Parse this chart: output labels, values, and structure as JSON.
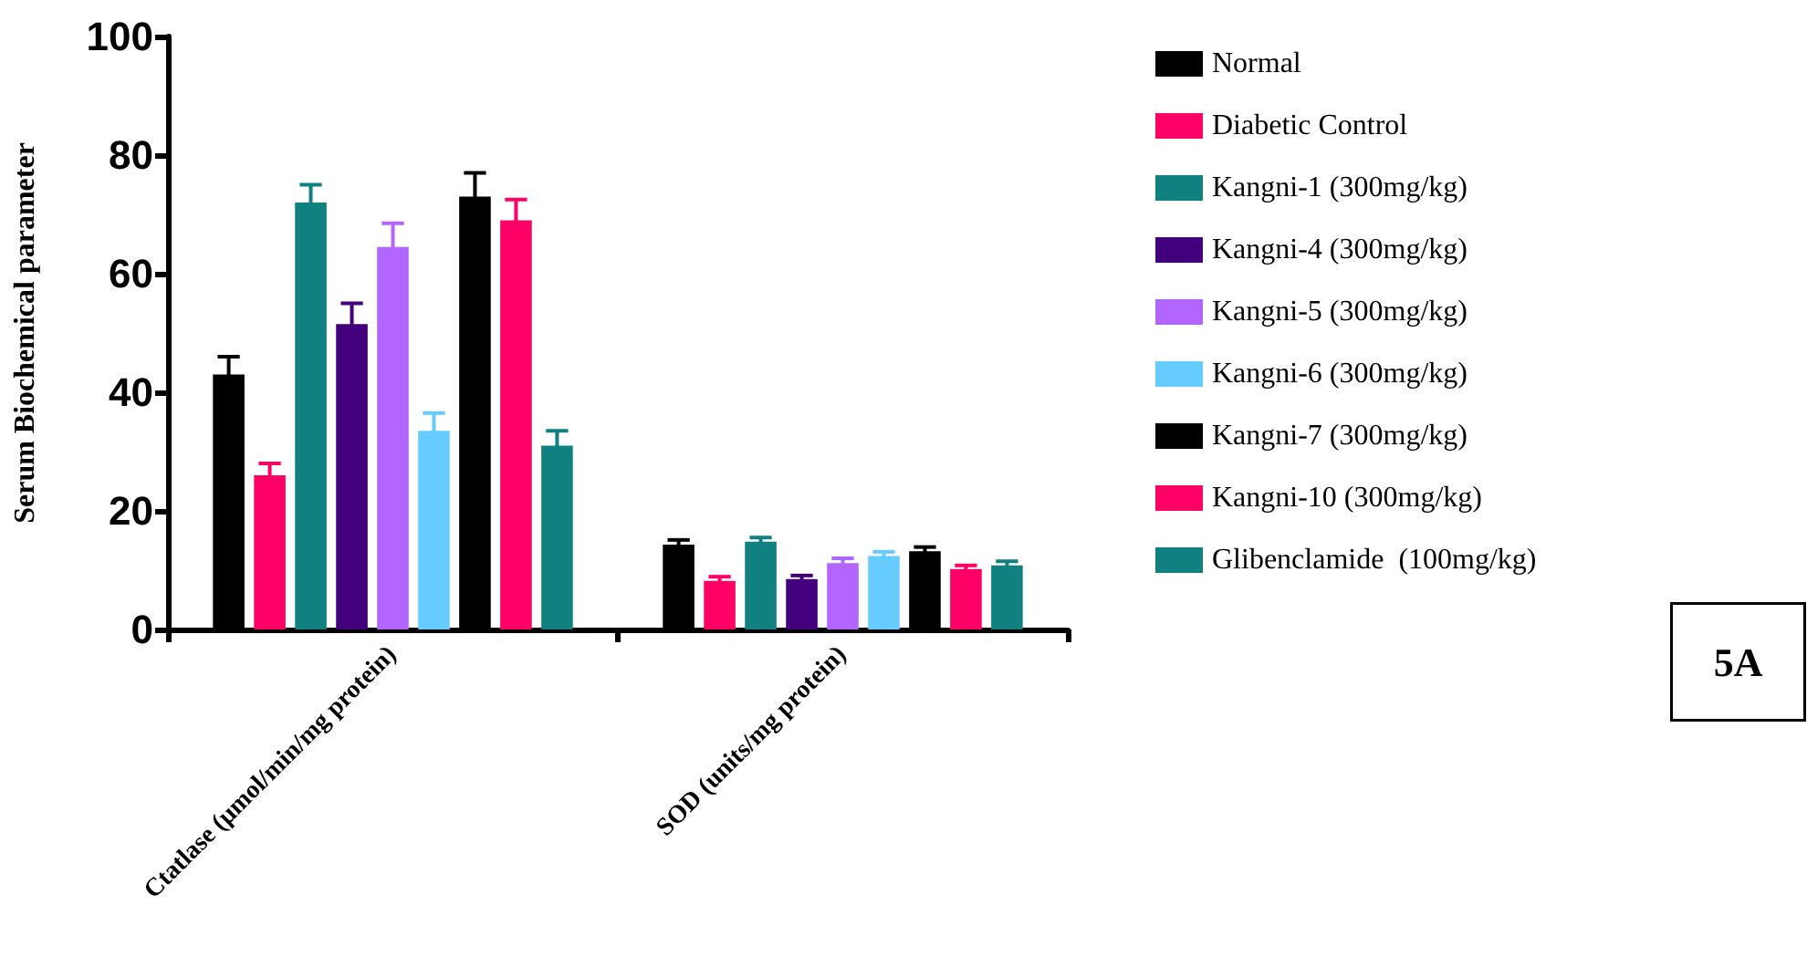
{
  "chart_data": {
    "type": "bar",
    "ylabel": "Serum Biochemical parameter",
    "categories": [
      "Ctatlase (µmol/min/mg protein)",
      "SOD (units/mg protein)"
    ],
    "ylim": [
      0,
      100
    ],
    "yticks": [
      0,
      20,
      40,
      60,
      80,
      100
    ],
    "grid": false,
    "legend": "top right",
    "annotations": [
      "5A"
    ],
    "series": [
      {
        "name": "Normal",
        "color": "#000000",
        "values": [
          43,
          14.3
        ],
        "errors": [
          3,
          0.8
        ]
      },
      {
        "name": "Diabetic Control",
        "color": "#ff0066",
        "values": [
          26,
          8.2
        ],
        "errors": [
          2,
          0.7
        ]
      },
      {
        "name": "Kangni-1 (300mg/kg)",
        "color": "#118080",
        "values": [
          72,
          14.8
        ],
        "errors": [
          3,
          0.7
        ]
      },
      {
        "name": "Kangni-4 (300mg/kg)",
        "color": "#42007c",
        "values": [
          51.5,
          8.5
        ],
        "errors": [
          3.5,
          0.6
        ]
      },
      {
        "name": "Kangni-5 (300mg/kg)",
        "color": "#b266ff",
        "values": [
          64.5,
          11.2
        ],
        "errors": [
          4,
          0.8
        ]
      },
      {
        "name": "Kangni-6 (300mg/kg)",
        "color": "#66ccff",
        "values": [
          33.5,
          12.4
        ],
        "errors": [
          3,
          0.7
        ]
      },
      {
        "name": "Kangni-7 (300mg/kg)",
        "color": "#000000",
        "values": [
          73,
          13.2
        ],
        "errors": [
          4,
          0.7
        ]
      },
      {
        "name": "Kangni-10 (300mg/kg)",
        "color": "#ff0066",
        "values": [
          69,
          10.2
        ],
        "errors": [
          3.5,
          0.6
        ]
      },
      {
        "name": "Glibenclamide  (100mg/kg)",
        "color": "#118080",
        "values": [
          31,
          10.8
        ],
        "errors": [
          2.5,
          0.7
        ]
      }
    ]
  }
}
